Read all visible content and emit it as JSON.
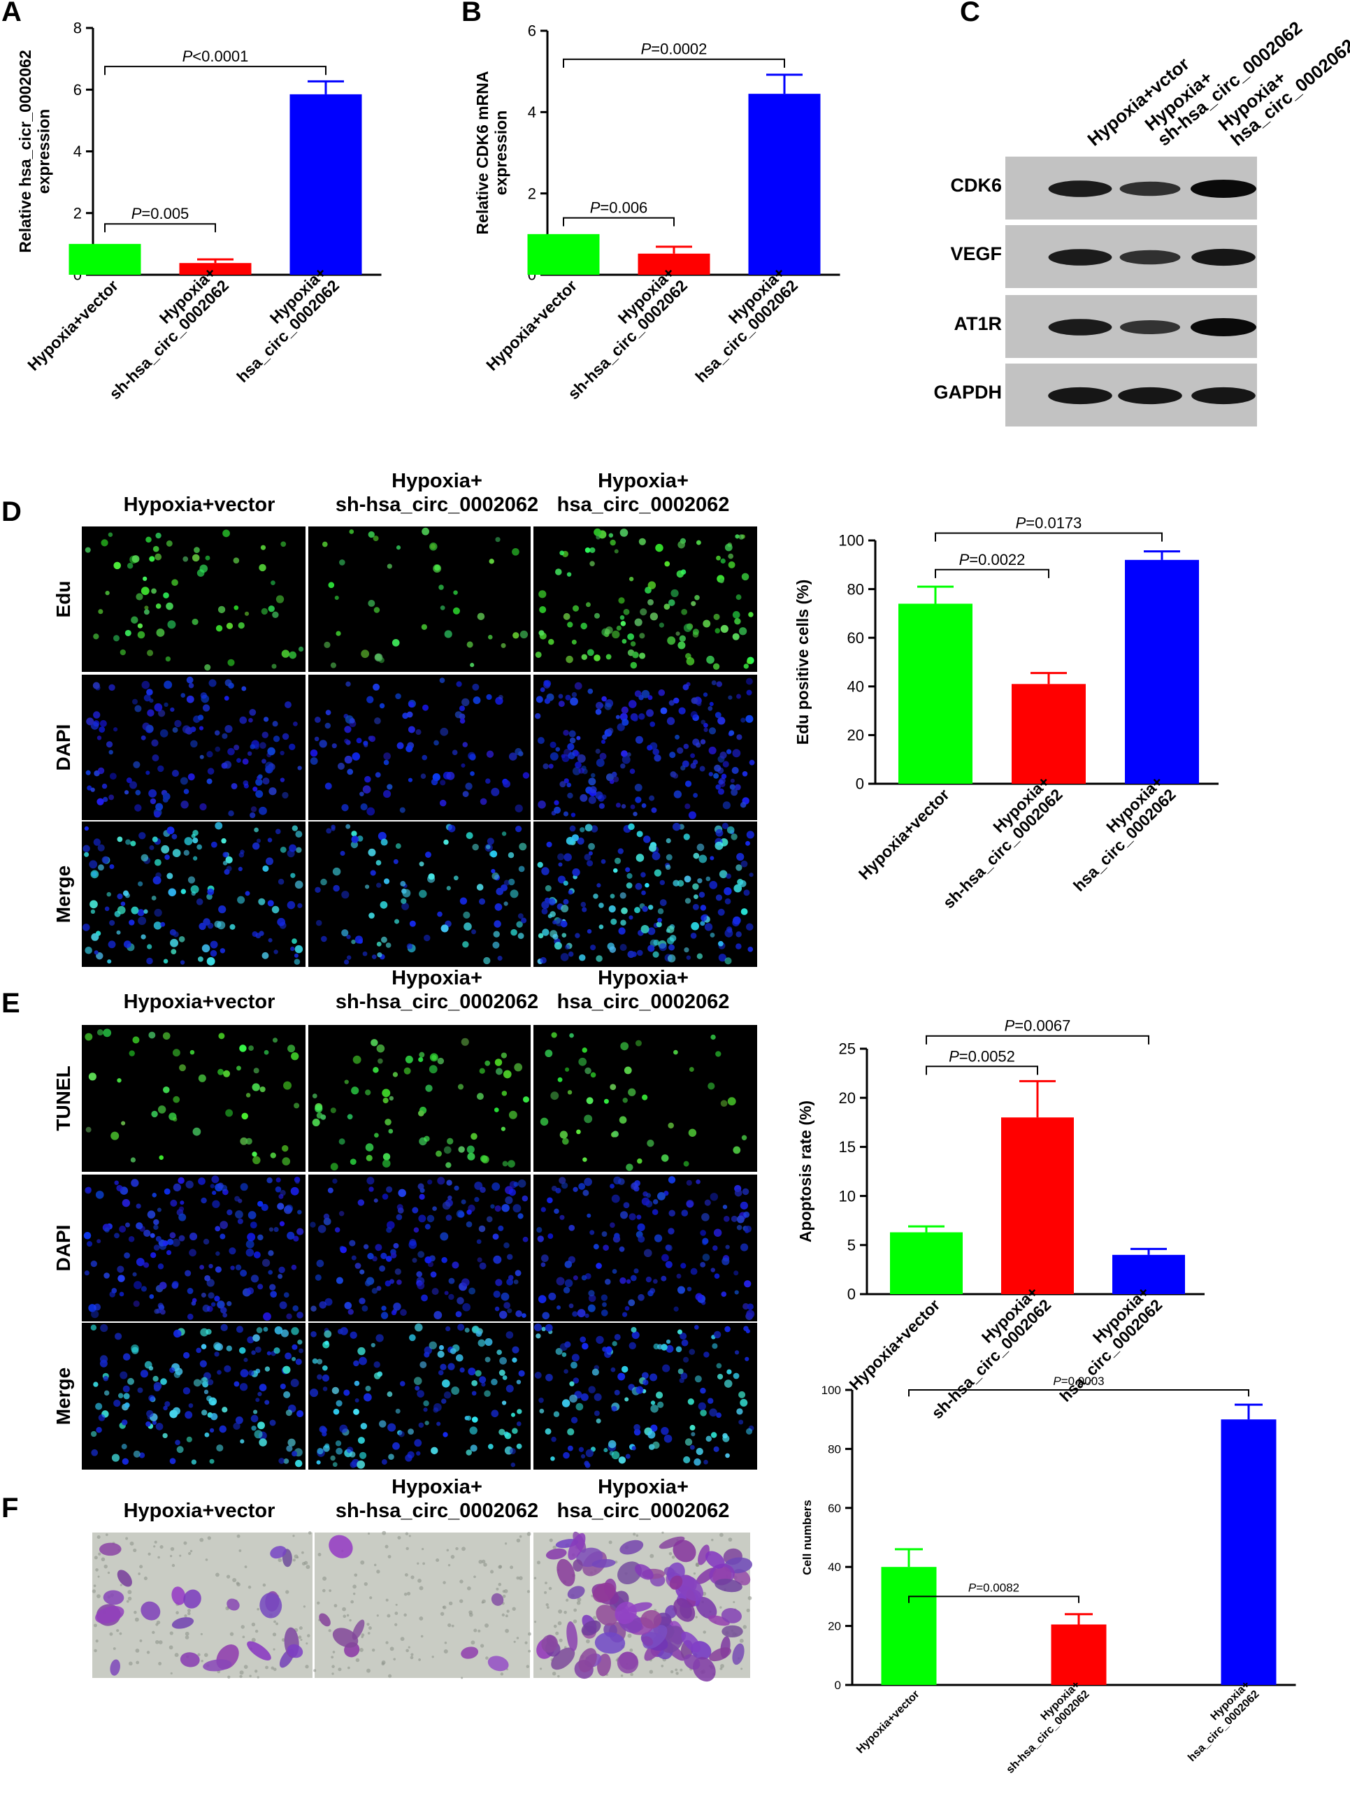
{
  "panel_letters": {
    "A": "A",
    "B": "B",
    "C": "C",
    "D": "D",
    "E": "E",
    "F": "F"
  },
  "group_labels": {
    "vector": "Hypoxia+vector",
    "sh_line1": "Hypoxia+",
    "sh_line2": "sh-hsa_circ_0002062",
    "oe_line1": "Hypoxia+",
    "oe_line2": "hsa_circ_0002062"
  },
  "colors": {
    "vector": "#00ff00",
    "sh": "#ff0000",
    "oe": "#0000ff"
  },
  "western_blot": {
    "columns": [
      "Hypoxia+vctor",
      "Hypoxia+ sh-hsa_circ_0002062",
      "Hypoxia+ hsa_circ_0002062"
    ],
    "rows": [
      "CDK6",
      "VEGF",
      "AT1R",
      "GAPDH"
    ],
    "band_intensity": [
      [
        0.8,
        0.55,
        1.0
      ],
      [
        0.8,
        0.55,
        0.85
      ],
      [
        0.8,
        0.5,
        1.0
      ],
      [
        0.85,
        0.85,
        0.85
      ]
    ]
  },
  "micrographs": {
    "D_rows": [
      "Edu",
      "DAPI",
      "Merge"
    ],
    "E_rows": [
      "TUNEL",
      "DAPI",
      "Merge"
    ],
    "F_stain": "crystal violet"
  },
  "chart_data": [
    {
      "id": "A",
      "type": "bar",
      "categories": [
        "Hypoxia+vector",
        "Hypoxia+ sh-hsa_circ_0002062",
        "Hypoxia+ hsa_circ_0002062"
      ],
      "values": [
        1.0,
        0.38,
        5.85
      ],
      "errors": [
        0,
        0.12,
        0.42
      ],
      "ylabel_line1": "Relative hsa_cicr_0002062",
      "ylabel_line2": "expression",
      "ylim": [
        0,
        8
      ],
      "yticks": [
        "0",
        "2",
        "4",
        "6",
        "8"
      ],
      "ytick_values": [
        0,
        2,
        4,
        6,
        8
      ],
      "significance": [
        {
          "p": "P=0.005",
          "from": 0,
          "to": 1,
          "height": 1.65
        },
        {
          "p": "P<0.0001",
          "from": 0,
          "to": 2,
          "height": 6.75
        }
      ]
    },
    {
      "id": "B",
      "type": "bar",
      "categories": [
        "Hypoxia+vector",
        "Hypoxia+ sh-hsa_circ_0002062",
        "Hypoxia+ hsa_circ_0002062"
      ],
      "values": [
        1.0,
        0.52,
        4.45
      ],
      "errors": [
        0,
        0.17,
        0.47
      ],
      "ylabel_line1": "Relative CDK6 mRNA",
      "ylabel_line2": "expression",
      "ylim": [
        0,
        6
      ],
      "yticks": [
        "0",
        "2",
        "4",
        "6"
      ],
      "ytick_values": [
        0,
        2,
        4,
        6
      ],
      "significance": [
        {
          "p": "P=0.006",
          "from": 0,
          "to": 1,
          "height": 1.4
        },
        {
          "p": "P=0.0002",
          "from": 0,
          "to": 2,
          "height": 5.3
        }
      ]
    },
    {
      "id": "D",
      "type": "bar",
      "categories": [
        "Hypoxia+vector",
        "Hypoxia+ sh-hsa_circ_0002062",
        "Hypoxia+ hsa_circ_0002062"
      ],
      "values": [
        74,
        41,
        92
      ],
      "errors": [
        7,
        4.5,
        3.5
      ],
      "ylabel_line1": "Edu positive cells (%)",
      "ylabel_line2": "",
      "ylim": [
        0,
        100
      ],
      "yticks": [
        "0",
        "20",
        "40",
        "60",
        "80",
        "100"
      ],
      "ytick_values": [
        0,
        20,
        40,
        60,
        80,
        100
      ],
      "significance": [
        {
          "p": "P=0.0022",
          "from": 0,
          "to": 1,
          "height": 88
        },
        {
          "p": "P=0.0173",
          "from": 0,
          "to": 2,
          "height": 103
        }
      ]
    },
    {
      "id": "E",
      "type": "bar",
      "categories": [
        "Hypoxia+vector",
        "Hypoxia+ sh-hsa_circ_0002062",
        "Hypoxia+ hsa_circ_0002062"
      ],
      "values": [
        6.3,
        18.0,
        4.0
      ],
      "errors": [
        0.6,
        3.7,
        0.6
      ],
      "ylabel_line1": "Apoptosis rate (%)",
      "ylabel_line2": "",
      "ylim": [
        0,
        25
      ],
      "yticks": [
        "0",
        "5",
        "10",
        "15",
        "20",
        "25"
      ],
      "ytick_values": [
        0,
        5,
        10,
        15,
        20,
        25
      ],
      "significance": [
        {
          "p": "P=0.0052",
          "from": 0,
          "to": 1,
          "height": 23.2
        },
        {
          "p": "P=0.0067",
          "from": 0,
          "to": 2,
          "height": 26.3
        }
      ]
    },
    {
      "id": "F",
      "type": "bar",
      "categories": [
        "Hypoxia+vector",
        "Hypoxia+ sh-hsa_circ_0002062",
        "Hypoxia+ hsa_circ_0002062"
      ],
      "values": [
        40,
        20.5,
        90
      ],
      "errors": [
        6,
        3.5,
        5
      ],
      "ylabel_line1": "Cell numbers",
      "ylabel_line2": "",
      "ylim": [
        0,
        100
      ],
      "yticks": [
        "0",
        "20",
        "40",
        "60",
        "80",
        "100"
      ],
      "ytick_values": [
        0,
        20,
        40,
        60,
        80,
        100
      ],
      "significance": [
        {
          "p": "P=0.0082",
          "from": 0,
          "to": 1,
          "height": 30
        },
        {
          "p": "P=0.0003",
          "from": 0,
          "to": 2,
          "height": 100
        }
      ]
    }
  ]
}
